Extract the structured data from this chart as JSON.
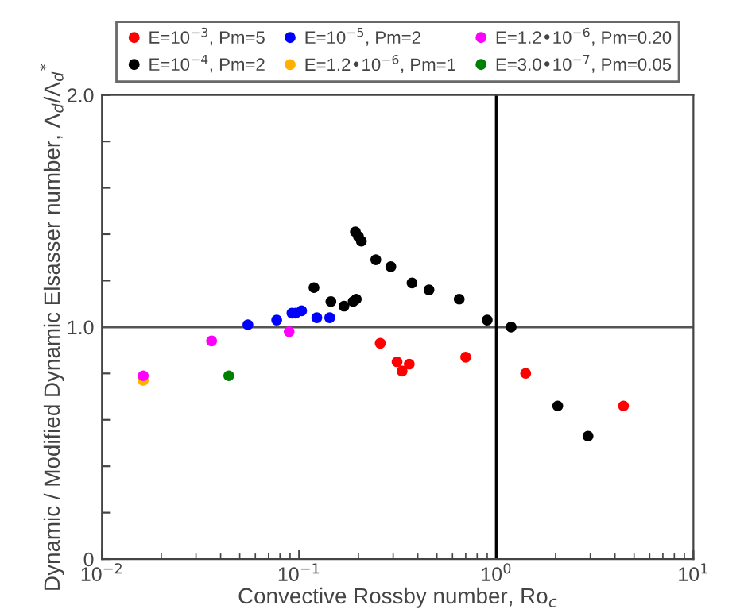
{
  "chart_data": {
    "type": "scatter",
    "xlabel": "Convective Rossby number, Ro$_{c}$",
    "ylabel": "Dynamic / Modified Dynamic Elsasser number, Λ$_{d}$/Λ$_{d}$$^{*}$",
    "log": "x",
    "xlim": [
      0.01,
      10
    ],
    "xticks": [
      {
        "value": 0.01,
        "label": "10$^{−2}$"
      },
      {
        "value": 0.1,
        "label": "10$^{−1}$"
      },
      {
        "value": 1,
        "label": "10$^{0}$"
      },
      {
        "value": 10,
        "label": "10$^{1}$"
      }
    ],
    "ylim": [
      0,
      2.0
    ],
    "yticks": [
      {
        "value": 0,
        "label": "0"
      },
      {
        "value": 0.2,
        "label": null
      },
      {
        "value": 0.4,
        "label": null
      },
      {
        "value": 0.6,
        "label": null
      },
      {
        "value": 0.8,
        "label": null
      },
      {
        "value": 1.0,
        "label": "1.0"
      },
      {
        "value": 1.2,
        "label": null
      },
      {
        "value": 1.4,
        "label": null
      },
      {
        "value": 1.6,
        "label": null
      },
      {
        "value": 1.8,
        "label": null
      },
      {
        "value": 2.0,
        "label": "2.0"
      }
    ],
    "grid": false,
    "legend": "top",
    "marker": "circle",
    "ref_lines": [
      {
        "axis": "y",
        "value": 1.0,
        "color": "#555555"
      },
      {
        "axis": "x",
        "value": 1,
        "color": "#000000"
      }
    ],
    "series": [
      {
        "name": "E=10$^{−3}$, Pm=5",
        "color": "#ff0000",
        "x": [
          0.258,
          0.314,
          0.333,
          0.362,
          0.7,
          1.41,
          4.42
        ],
        "values": [
          0.93,
          0.85,
          0.81,
          0.84,
          0.87,
          0.8,
          0.66
        ]
      },
      {
        "name": "E=10$^{−4}$, Pm=2",
        "color": "#000000",
        "x": [
          0.119,
          0.145,
          0.169,
          0.188,
          0.195,
          0.193,
          0.2,
          0.207,
          0.245,
          0.292,
          0.374,
          0.456,
          0.649,
          0.9,
          1.19,
          2.05,
          2.92
        ],
        "values": [
          1.17,
          1.11,
          1.09,
          1.11,
          1.12,
          1.41,
          1.39,
          1.37,
          1.29,
          1.26,
          1.19,
          1.16,
          1.12,
          1.03,
          1.0,
          0.66,
          0.53
        ]
      },
      {
        "name": "E=10$^{−5}$, Pm=2",
        "color": "#0000ff",
        "x": [
          0.055,
          0.077,
          0.092,
          0.096,
          0.103,
          0.123,
          0.143
        ],
        "values": [
          1.01,
          1.03,
          1.06,
          1.06,
          1.07,
          1.04,
          1.04
        ]
      },
      {
        "name": "E=1.2•10$^{−6}$, Pm=1",
        "color": "#ffb000",
        "x": [
          0.0162
        ],
        "values": [
          0.77
        ]
      },
      {
        "name": "E=1.2•10$^{−6}$, Pm=0.20",
        "color": "#ff00ff",
        "x": [
          0.0162,
          0.036,
          0.089
        ],
        "values": [
          0.79,
          0.94,
          0.98
        ]
      },
      {
        "name": "E=3.0•10$^{−7}$, Pm=0.05",
        "color": "#008000",
        "x": [
          0.044
        ],
        "values": [
          0.79
        ]
      }
    ]
  }
}
